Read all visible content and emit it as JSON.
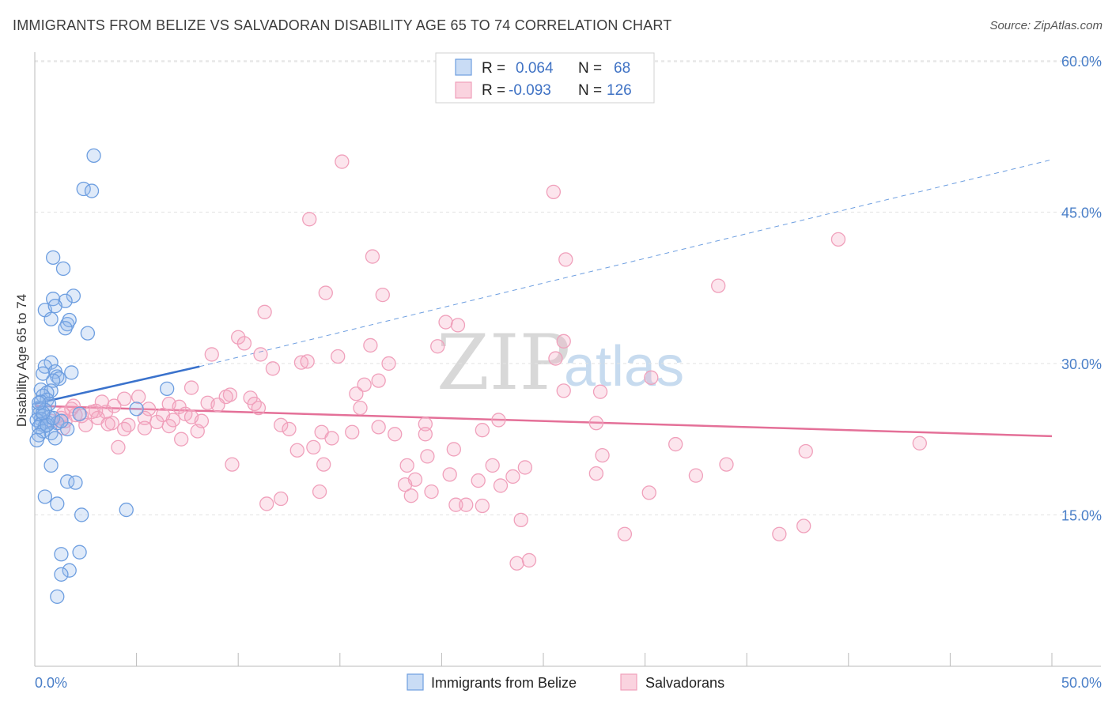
{
  "header": {
    "title": "IMMIGRANTS FROM BELIZE VS SALVADORAN DISABILITY AGE 65 TO 74 CORRELATION CHART",
    "source": "Source: ZipAtlas.com"
  },
  "watermark": {
    "zip": "ZIP",
    "atlas": "atlas"
  },
  "colors": {
    "belize": "#6d9ee0",
    "belize_line": "#3a72cc",
    "salvadoran": "#f0a0bb",
    "salvadoran_line": "#e47098",
    "tick_text": "#4a7fc8",
    "grid": "#e2e2e2"
  },
  "stats_legend": {
    "rows": [
      {
        "r_label": "R =",
        "r_value": "0.064",
        "n_label": "N =",
        "n_value": "68"
      },
      {
        "r_label": "R =",
        "r_value": "-0.093",
        "n_label": "N =",
        "n_value": "126"
      }
    ]
  },
  "chart_data": {
    "type": "scatter",
    "title": "IMMIGRANTS FROM BELIZE VS SALVADORAN DISABILITY AGE 65 TO 74 CORRELATION CHART",
    "xlabel": "",
    "ylabel": "Disability Age 65 to 74",
    "xlim": [
      0,
      50
    ],
    "ylim": [
      0,
      60
    ],
    "x_tick_labels": [
      "0.0%",
      "50.0%"
    ],
    "y_ticks": [
      15,
      30,
      45,
      60
    ],
    "y_tick_labels": [
      "15.0%",
      "30.0%",
      "45.0%",
      "60.0%"
    ],
    "grid": "horizontal dashed",
    "legend_position": "bottom",
    "series": [
      {
        "name": "Immigrants from Belize",
        "r": 0.064,
        "n": 68,
        "trend": {
          "x": [
            0,
            8.1
          ],
          "y": [
            26.0,
            29.7
          ],
          "extended_x": [
            8.1,
            50
          ],
          "extended_y": [
            29.7,
            50.2
          ]
        },
        "points": [
          [
            2.9,
            50.6
          ],
          [
            2.4,
            47.3
          ],
          [
            2.8,
            47.1
          ],
          [
            0.9,
            40.5
          ],
          [
            1.4,
            39.4
          ],
          [
            1.9,
            36.7
          ],
          [
            0.9,
            36.4
          ],
          [
            1.5,
            36.2
          ],
          [
            0.5,
            35.3
          ],
          [
            1.0,
            35.7
          ],
          [
            0.8,
            34.4
          ],
          [
            1.6,
            33.9
          ],
          [
            1.7,
            34.3
          ],
          [
            1.5,
            33.5
          ],
          [
            2.6,
            33.0
          ],
          [
            0.8,
            30.1
          ],
          [
            0.5,
            29.7
          ],
          [
            1.0,
            29.2
          ],
          [
            1.8,
            29.1
          ],
          [
            0.4,
            29.0
          ],
          [
            1.1,
            28.7
          ],
          [
            1.2,
            28.5
          ],
          [
            0.9,
            28.3
          ],
          [
            0.3,
            27.4
          ],
          [
            0.8,
            27.3
          ],
          [
            0.6,
            27.1
          ],
          [
            0.4,
            26.8
          ],
          [
            0.6,
            26.4
          ],
          [
            0.3,
            26.2
          ],
          [
            0.7,
            26.0
          ],
          [
            6.5,
            27.5
          ],
          [
            0.2,
            25.6
          ],
          [
            0.5,
            25.4
          ],
          [
            5.0,
            25.5
          ],
          [
            0.2,
            25.0
          ],
          [
            0.4,
            24.8
          ],
          [
            0.7,
            24.7
          ],
          [
            0.3,
            24.5
          ],
          [
            2.2,
            25.0
          ],
          [
            0.1,
            24.4
          ],
          [
            0.6,
            24.2
          ],
          [
            1.1,
            24.1
          ],
          [
            0.3,
            24.0
          ],
          [
            0.5,
            23.8
          ],
          [
            0.2,
            23.7
          ],
          [
            1.6,
            23.5
          ],
          [
            0.4,
            23.3
          ],
          [
            0.8,
            23.1
          ],
          [
            0.2,
            22.9
          ],
          [
            1.0,
            22.6
          ],
          [
            0.1,
            22.4
          ],
          [
            0.8,
            19.9
          ],
          [
            1.6,
            18.3
          ],
          [
            2.0,
            18.2
          ],
          [
            0.5,
            16.8
          ],
          [
            1.1,
            16.1
          ],
          [
            4.5,
            15.5
          ],
          [
            2.3,
            15.0
          ],
          [
            1.3,
            11.1
          ],
          [
            2.2,
            11.3
          ],
          [
            1.7,
            9.5
          ],
          [
            1.3,
            9.1
          ],
          [
            1.1,
            6.9
          ],
          [
            0.6,
            23.9
          ],
          [
            0.9,
            24.6
          ],
          [
            0.4,
            25.1
          ],
          [
            1.3,
            24.3
          ],
          [
            0.2,
            26.1
          ]
        ]
      },
      {
        "name": "Salvadorans",
        "r": -0.093,
        "n": 126,
        "trend": {
          "x": [
            0,
            50
          ],
          "y": [
            25.8,
            22.8
          ]
        },
        "points": [
          [
            15.1,
            50.0
          ],
          [
            25.5,
            47.0
          ],
          [
            13.5,
            44.3
          ],
          [
            16.6,
            40.6
          ],
          [
            26.1,
            40.3
          ],
          [
            39.5,
            42.3
          ],
          [
            33.6,
            37.7
          ],
          [
            14.3,
            37.0
          ],
          [
            17.1,
            36.8
          ],
          [
            11.3,
            35.1
          ],
          [
            20.2,
            34.1
          ],
          [
            20.8,
            33.8
          ],
          [
            10.0,
            32.6
          ],
          [
            10.3,
            32.0
          ],
          [
            26.0,
            32.2
          ],
          [
            16.5,
            31.8
          ],
          [
            19.8,
            31.7
          ],
          [
            8.7,
            30.9
          ],
          [
            11.1,
            30.9
          ],
          [
            14.9,
            30.7
          ],
          [
            25.6,
            30.5
          ],
          [
            13.1,
            30.1
          ],
          [
            13.4,
            30.2
          ],
          [
            17.4,
            30.0
          ],
          [
            11.7,
            29.5
          ],
          [
            30.3,
            28.6
          ],
          [
            16.9,
            28.3
          ],
          [
            16.2,
            27.9
          ],
          [
            7.7,
            27.6
          ],
          [
            26.0,
            27.3
          ],
          [
            27.8,
            27.2
          ],
          [
            15.8,
            27.0
          ],
          [
            9.6,
            26.9
          ],
          [
            5.1,
            26.7
          ],
          [
            9.4,
            26.7
          ],
          [
            10.6,
            26.6
          ],
          [
            4.4,
            26.5
          ],
          [
            3.3,
            26.2
          ],
          [
            8.5,
            26.1
          ],
          [
            10.8,
            26.0
          ],
          [
            6.6,
            26.0
          ],
          [
            3.9,
            25.8
          ],
          [
            7.1,
            25.7
          ],
          [
            9.0,
            25.9
          ],
          [
            11.0,
            25.6
          ],
          [
            16.0,
            25.6
          ],
          [
            1.8,
            25.5
          ],
          [
            5.6,
            25.5
          ],
          [
            3.0,
            25.3
          ],
          [
            2.8,
            25.2
          ],
          [
            3.5,
            25.2
          ],
          [
            7.4,
            25.0
          ],
          [
            1.4,
            25.0
          ],
          [
            2.0,
            24.9
          ],
          [
            6.3,
            24.9
          ],
          [
            2.3,
            24.8
          ],
          [
            7.7,
            24.7
          ],
          [
            3.1,
            24.6
          ],
          [
            1.3,
            24.6
          ],
          [
            5.4,
            24.6
          ],
          [
            6.8,
            24.4
          ],
          [
            22.8,
            24.4
          ],
          [
            0.8,
            24.3
          ],
          [
            1.5,
            24.3
          ],
          [
            6.0,
            24.2
          ],
          [
            3.8,
            24.1
          ],
          [
            27.6,
            24.1
          ],
          [
            19.2,
            24.0
          ],
          [
            2.5,
            23.9
          ],
          [
            4.6,
            23.9
          ],
          [
            12.1,
            23.9
          ],
          [
            6.6,
            23.8
          ],
          [
            1.4,
            23.6
          ],
          [
            4.4,
            23.5
          ],
          [
            12.5,
            23.5
          ],
          [
            8.0,
            23.3
          ],
          [
            22.0,
            23.4
          ],
          [
            14.1,
            23.2
          ],
          [
            15.6,
            23.2
          ],
          [
            17.7,
            23.0
          ],
          [
            19.2,
            23.0
          ],
          [
            14.6,
            22.6
          ],
          [
            7.2,
            22.5
          ],
          [
            31.5,
            22.0
          ],
          [
            43.5,
            22.1
          ],
          [
            13.7,
            21.7
          ],
          [
            4.1,
            21.7
          ],
          [
            12.9,
            21.4
          ],
          [
            37.9,
            21.3
          ],
          [
            27.9,
            20.9
          ],
          [
            19.3,
            20.8
          ],
          [
            9.7,
            20.0
          ],
          [
            14.2,
            20.0
          ],
          [
            34.0,
            20.0
          ],
          [
            18.3,
            19.9
          ],
          [
            22.5,
            19.9
          ],
          [
            24.1,
            19.7
          ],
          [
            27.6,
            19.1
          ],
          [
            23.5,
            18.8
          ],
          [
            20.4,
            19.0
          ],
          [
            32.5,
            18.9
          ],
          [
            18.7,
            18.5
          ],
          [
            21.8,
            18.4
          ],
          [
            18.2,
            18.0
          ],
          [
            22.9,
            17.9
          ],
          [
            14.0,
            17.3
          ],
          [
            19.5,
            17.3
          ],
          [
            30.2,
            17.2
          ],
          [
            18.5,
            16.9
          ],
          [
            12.1,
            16.6
          ],
          [
            11.4,
            16.1
          ],
          [
            20.7,
            16.0
          ],
          [
            21.2,
            16.0
          ],
          [
            22.0,
            15.9
          ],
          [
            23.9,
            14.5
          ],
          [
            37.8,
            13.9
          ],
          [
            29.0,
            13.1
          ],
          [
            36.6,
            13.1
          ],
          [
            23.7,
            10.2
          ],
          [
            24.3,
            10.5
          ],
          [
            5.4,
            23.6
          ],
          [
            8.2,
            24.3
          ],
          [
            3.6,
            24.0
          ],
          [
            1.9,
            25.8
          ],
          [
            20.6,
            21.5
          ],
          [
            16.9,
            23.7
          ]
        ]
      }
    ]
  }
}
